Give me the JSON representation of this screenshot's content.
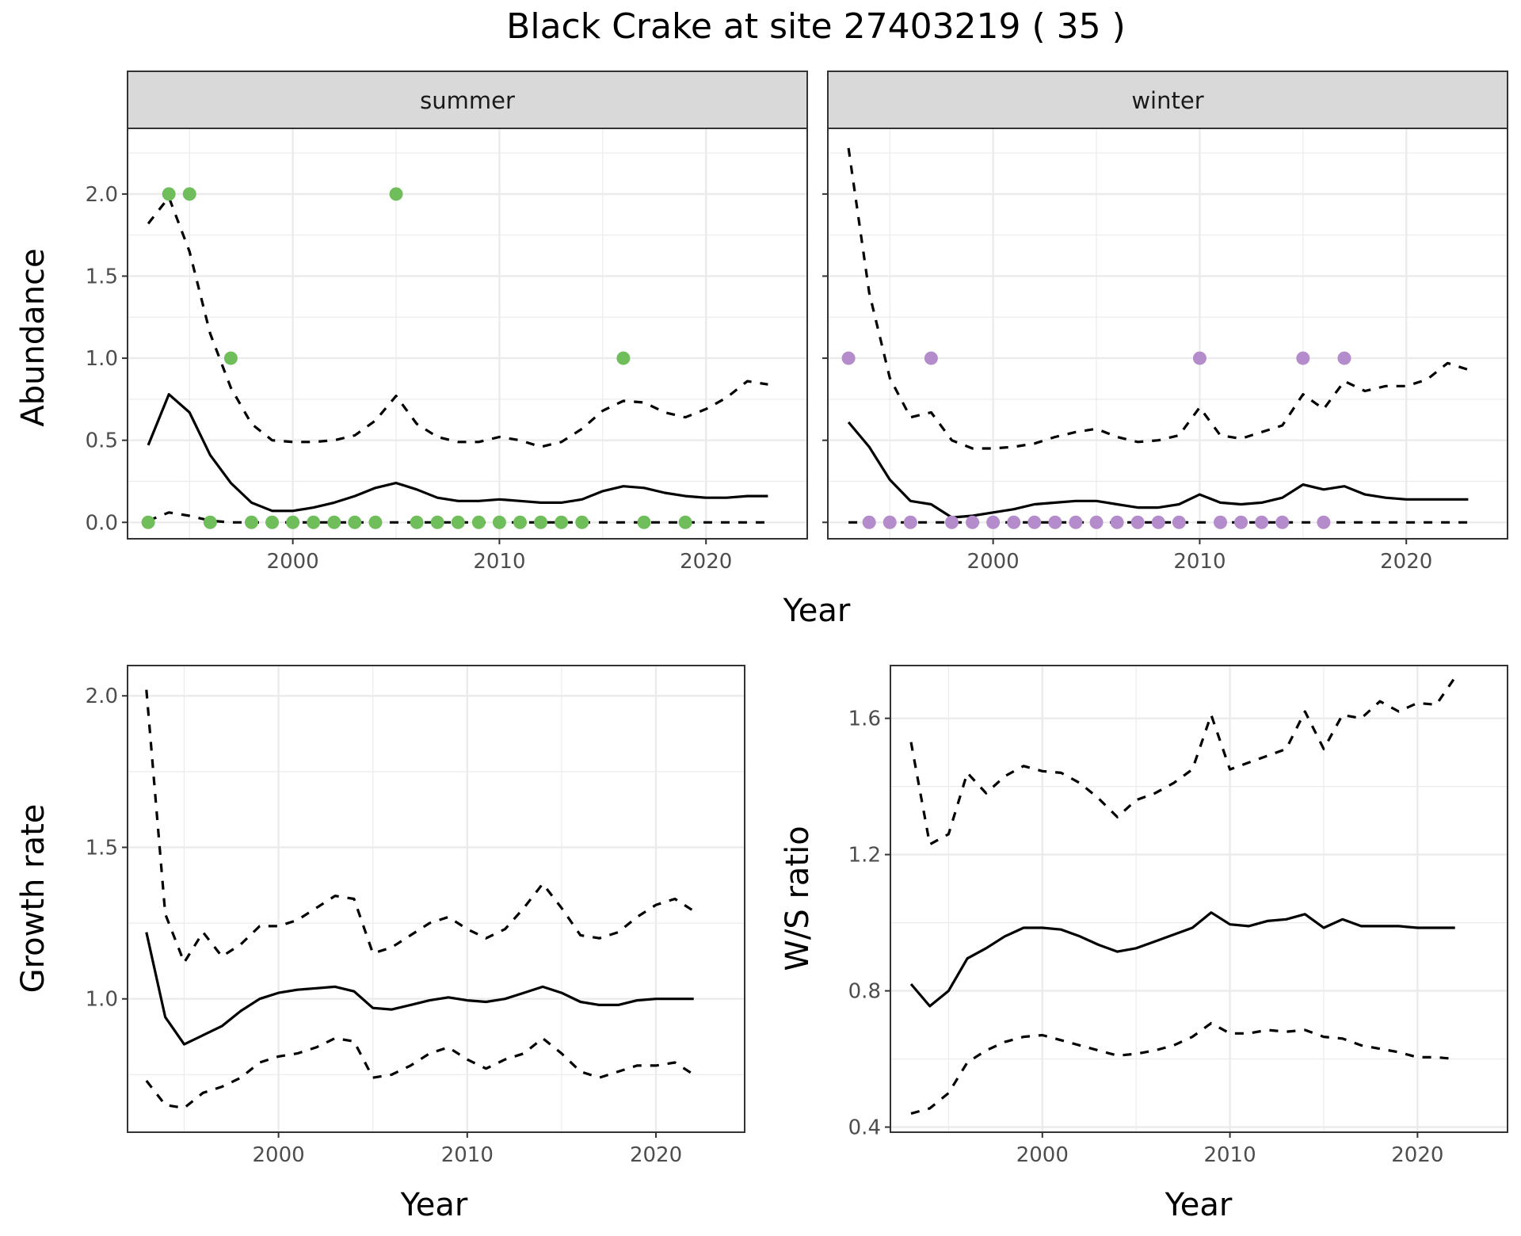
{
  "title": "Black Crake at site 27403219 ( 35 )",
  "colors": {
    "summer_points": "#70BE5B",
    "winter_points": "#B48BCB",
    "line": "#000000",
    "strip_fill": "#D9D9D9",
    "grid": "#EBEBEB",
    "panel_border": "#333333"
  },
  "chart_data": [
    {
      "type": "line",
      "panel": "summer",
      "strip_label": "summer",
      "xlabel": "Year",
      "ylabel": "Abundance",
      "xlim": [
        1992.0,
        2024.9
      ],
      "ylim": [
        -0.1,
        2.4
      ],
      "x_ticks": [
        2000,
        2010,
        2020
      ],
      "y_ticks": [
        0.0,
        0.5,
        1.0,
        1.5,
        2.0
      ],
      "y_tick_labels": [
        "0.0",
        "0.5",
        "1.0",
        "1.5",
        "2.0"
      ],
      "grid": true,
      "point_color": "#70BE5B",
      "points": {
        "x": [
          1993,
          1994,
          1995,
          1996,
          1997,
          1998,
          1999,
          2000,
          2001,
          2002,
          2003,
          2004,
          2005,
          2006,
          2007,
          2008,
          2009,
          2010,
          2011,
          2012,
          2013,
          2014,
          2016,
          2017,
          2019
        ],
        "y": [
          0,
          2,
          2,
          0,
          1,
          0,
          0,
          0,
          0,
          0,
          0,
          0,
          2,
          0,
          0,
          0,
          0,
          0,
          0,
          0,
          0,
          0,
          1,
          0,
          0
        ]
      },
      "series": [
        {
          "style": "solid",
          "x": [
            1993,
            1994,
            1995,
            1996,
            1997,
            1998,
            1999,
            2000,
            2001,
            2002,
            2003,
            2004,
            2005,
            2006,
            2007,
            2008,
            2009,
            2010,
            2011,
            2012,
            2013,
            2014,
            2015,
            2016,
            2017,
            2018,
            2019,
            2020,
            2021,
            2022,
            2023
          ],
          "y": [
            0.47,
            0.78,
            0.67,
            0.41,
            0.24,
            0.12,
            0.07,
            0.07,
            0.09,
            0.12,
            0.16,
            0.21,
            0.24,
            0.2,
            0.15,
            0.13,
            0.13,
            0.14,
            0.13,
            0.12,
            0.12,
            0.14,
            0.19,
            0.22,
            0.21,
            0.18,
            0.16,
            0.15,
            0.15,
            0.16,
            0.16
          ]
        },
        {
          "style": "dashed",
          "x": [
            1993,
            1994,
            1995,
            1996,
            1997,
            1998,
            1999,
            2000,
            2001,
            2002,
            2003,
            2004,
            2005,
            2006,
            2007,
            2008,
            2009,
            2010,
            2011,
            2012,
            2013,
            2014,
            2015,
            2016,
            2017,
            2018,
            2019,
            2020,
            2021,
            2022,
            2023
          ],
          "y": [
            1.82,
            1.98,
            1.65,
            1.15,
            0.82,
            0.6,
            0.5,
            0.49,
            0.49,
            0.5,
            0.53,
            0.62,
            0.77,
            0.6,
            0.52,
            0.49,
            0.49,
            0.52,
            0.5,
            0.46,
            0.49,
            0.57,
            0.68,
            0.74,
            0.73,
            0.67,
            0.64,
            0.69,
            0.76,
            0.86,
            0.84
          ]
        },
        {
          "style": "dashed",
          "x": [
            1993,
            1994,
            1995,
            1996,
            1997,
            1998,
            1999,
            2000,
            2001,
            2002,
            2003,
            2004,
            2005,
            2006,
            2007,
            2008,
            2009,
            2010,
            2011,
            2012,
            2013,
            2014,
            2015,
            2016,
            2017,
            2018,
            2019,
            2020,
            2021,
            2022,
            2023
          ],
          "y": [
            0.01,
            0.06,
            0.04,
            0.01,
            0,
            0,
            0,
            0,
            0,
            0,
            0,
            0,
            0,
            0,
            0,
            0,
            0,
            0,
            0,
            0,
            0,
            0,
            0,
            0,
            0,
            0,
            0,
            0,
            0,
            0,
            0
          ]
        }
      ]
    },
    {
      "type": "line",
      "panel": "winter",
      "strip_label": "winter",
      "xlabel": "Year",
      "ylabel": "Abundance",
      "xlim": [
        1992.0,
        2024.9
      ],
      "ylim": [
        -0.1,
        2.4
      ],
      "x_ticks": [
        2000,
        2010,
        2020
      ],
      "y_ticks": [
        0.0,
        0.5,
        1.0,
        1.5,
        2.0
      ],
      "grid": true,
      "point_color": "#B48BCB",
      "points": {
        "x": [
          1993,
          1994,
          1995,
          1996,
          1997,
          1998,
          1999,
          2000,
          2001,
          2002,
          2003,
          2004,
          2005,
          2006,
          2007,
          2008,
          2009,
          2010,
          2011,
          2012,
          2013,
          2014,
          2015,
          2016,
          2017
        ],
        "y": [
          1,
          0,
          0,
          0,
          1,
          0,
          0,
          0,
          0,
          0,
          0,
          0,
          0,
          0,
          0,
          0,
          0,
          1,
          0,
          0,
          0,
          0,
          1,
          0,
          1
        ]
      },
      "series": [
        {
          "style": "solid",
          "x": [
            1993,
            1994,
            1995,
            1996,
            1997,
            1998,
            1999,
            2000,
            2001,
            2002,
            2003,
            2004,
            2005,
            2006,
            2007,
            2008,
            2009,
            2010,
            2011,
            2012,
            2013,
            2014,
            2015,
            2016,
            2017,
            2018,
            2019,
            2020,
            2021,
            2022,
            2023
          ],
          "y": [
            0.61,
            0.46,
            0.26,
            0.13,
            0.11,
            0.03,
            0.04,
            0.06,
            0.08,
            0.11,
            0.12,
            0.13,
            0.13,
            0.11,
            0.09,
            0.09,
            0.11,
            0.17,
            0.12,
            0.11,
            0.12,
            0.15,
            0.23,
            0.2,
            0.22,
            0.17,
            0.15,
            0.14,
            0.14,
            0.14,
            0.14
          ]
        },
        {
          "style": "dashed",
          "x": [
            1993,
            1994,
            1995,
            1996,
            1997,
            1998,
            1999,
            2000,
            2001,
            2002,
            2003,
            2004,
            2005,
            2006,
            2007,
            2008,
            2009,
            2010,
            2011,
            2012,
            2013,
            2014,
            2015,
            2016,
            2017,
            2018,
            2019,
            2020,
            2021,
            2022,
            2023
          ],
          "y": [
            2.28,
            1.4,
            0.88,
            0.64,
            0.67,
            0.5,
            0.45,
            0.45,
            0.46,
            0.48,
            0.52,
            0.55,
            0.57,
            0.52,
            0.49,
            0.5,
            0.53,
            0.7,
            0.53,
            0.51,
            0.55,
            0.59,
            0.78,
            0.69,
            0.86,
            0.8,
            0.83,
            0.83,
            0.87,
            0.97,
            0.93
          ]
        },
        {
          "style": "dashed",
          "x": [
            1993,
            1994,
            1995,
            1996,
            1997,
            1998,
            1999,
            2000,
            2001,
            2002,
            2003,
            2004,
            2005,
            2006,
            2007,
            2008,
            2009,
            2010,
            2011,
            2012,
            2013,
            2014,
            2015,
            2016,
            2017,
            2018,
            2019,
            2020,
            2021,
            2022,
            2023
          ],
          "y": [
            0,
            0,
            0,
            0,
            0,
            0,
            0,
            0,
            0,
            0,
            0,
            0,
            0,
            0,
            0,
            0,
            0,
            0,
            0,
            0,
            0,
            0,
            0,
            0,
            0,
            0,
            0,
            0,
            0,
            0,
            0
          ]
        }
      ]
    },
    {
      "type": "line",
      "panel": "growth",
      "xlabel": "Year",
      "ylabel": "Growth rate",
      "xlim": [
        1992.0,
        2024.7
      ],
      "ylim": [
        0.56,
        2.1
      ],
      "x_ticks": [
        2000,
        2010,
        2020
      ],
      "y_ticks": [
        1.0,
        1.5,
        2.0
      ],
      "y_tick_labels": [
        "1.0",
        "1.5",
        "2.0"
      ],
      "grid": true,
      "series": [
        {
          "style": "solid",
          "x": [
            1993,
            1994,
            1995,
            1996,
            1997,
            1998,
            1999,
            2000,
            2001,
            2002,
            2003,
            2004,
            2005,
            2006,
            2007,
            2008,
            2009,
            2010,
            2011,
            2012,
            2013,
            2014,
            2015,
            2016,
            2017,
            2018,
            2019,
            2020,
            2021,
            2022
          ],
          "y": [
            1.22,
            0.94,
            0.85,
            0.88,
            0.91,
            0.96,
            1.0,
            1.02,
            1.03,
            1.035,
            1.04,
            1.025,
            0.97,
            0.965,
            0.98,
            0.995,
            1.005,
            0.995,
            0.99,
            1.0,
            1.02,
            1.04,
            1.02,
            0.99,
            0.98,
            0.98,
            0.995,
            1.0,
            1.0,
            1.0
          ]
        },
        {
          "style": "dashed",
          "x": [
            1993,
            1994,
            1995,
            1996,
            1997,
            1998,
            1999,
            2000,
            2001,
            2002,
            2003,
            2004,
            2005,
            2006,
            2007,
            2008,
            2009,
            2010,
            2011,
            2012,
            2013,
            2014,
            2015,
            2016,
            2017,
            2018,
            2019,
            2020,
            2021,
            2022
          ],
          "y": [
            2.02,
            1.28,
            1.12,
            1.22,
            1.14,
            1.18,
            1.24,
            1.24,
            1.26,
            1.3,
            1.34,
            1.33,
            1.15,
            1.17,
            1.21,
            1.25,
            1.27,
            1.23,
            1.2,
            1.23,
            1.3,
            1.38,
            1.3,
            1.21,
            1.2,
            1.22,
            1.27,
            1.31,
            1.33,
            1.29
          ]
        },
        {
          "style": "dashed",
          "x": [
            1993,
            1994,
            1995,
            1996,
            1997,
            1998,
            1999,
            2000,
            2001,
            2002,
            2003,
            2004,
            2005,
            2006,
            2007,
            2008,
            2009,
            2010,
            2011,
            2012,
            2013,
            2014,
            2015,
            2016,
            2017,
            2018,
            2019,
            2020,
            2021,
            2022
          ],
          "y": [
            0.73,
            0.65,
            0.64,
            0.69,
            0.71,
            0.74,
            0.79,
            0.81,
            0.82,
            0.84,
            0.87,
            0.86,
            0.74,
            0.75,
            0.78,
            0.82,
            0.84,
            0.8,
            0.77,
            0.8,
            0.82,
            0.87,
            0.82,
            0.76,
            0.74,
            0.76,
            0.78,
            0.78,
            0.79,
            0.75
          ]
        }
      ]
    },
    {
      "type": "line",
      "panel": "ws_ratio",
      "xlabel": "Year",
      "ylabel": "W/S ratio",
      "xlim": [
        1991.9,
        2024.8
      ],
      "ylim": [
        0.385,
        1.755
      ],
      "x_ticks": [
        2000,
        2010,
        2020
      ],
      "y_ticks": [
        0.4,
        0.8,
        1.2,
        1.6
      ],
      "y_tick_labels": [
        "0.4",
        "0.8",
        "1.2",
        "1.6"
      ],
      "grid": true,
      "series": [
        {
          "style": "solid",
          "x": [
            1993,
            1994,
            1995,
            1996,
            1997,
            1998,
            1999,
            2000,
            2001,
            2002,
            2003,
            2004,
            2005,
            2006,
            2007,
            2008,
            2009,
            2010,
            2011,
            2012,
            2013,
            2014,
            2015,
            2016,
            2017,
            2018,
            2019,
            2020,
            2021,
            2022
          ],
          "y": [
            0.82,
            0.755,
            0.8,
            0.895,
            0.925,
            0.96,
            0.985,
            0.985,
            0.98,
            0.96,
            0.935,
            0.915,
            0.925,
            0.945,
            0.965,
            0.985,
            1.03,
            0.995,
            0.99,
            1.005,
            1.01,
            1.025,
            0.985,
            1.01,
            0.99,
            0.99,
            0.99,
            0.985,
            0.985,
            0.985
          ]
        },
        {
          "style": "dashed",
          "x": [
            1993,
            1994,
            1995,
            1996,
            1997,
            1998,
            1999,
            2000,
            2001,
            2002,
            2003,
            2004,
            2005,
            2006,
            2007,
            2008,
            2009,
            2010,
            2011,
            2012,
            2013,
            2014,
            2015,
            2016,
            2017,
            2018,
            2019,
            2020,
            2021,
            2022
          ],
          "y": [
            1.53,
            1.23,
            1.26,
            1.44,
            1.38,
            1.43,
            1.46,
            1.445,
            1.44,
            1.41,
            1.365,
            1.31,
            1.36,
            1.38,
            1.41,
            1.45,
            1.61,
            1.45,
            1.47,
            1.49,
            1.51,
            1.62,
            1.51,
            1.61,
            1.6,
            1.65,
            1.62,
            1.645,
            1.64,
            1.72
          ]
        },
        {
          "style": "dashed",
          "x": [
            1993,
            1994,
            1995,
            1996,
            1997,
            1998,
            1999,
            2000,
            2001,
            2002,
            2003,
            2004,
            2005,
            2006,
            2007,
            2008,
            2009,
            2010,
            2011,
            2012,
            2013,
            2014,
            2015,
            2016,
            2017,
            2018,
            2019,
            2020,
            2021,
            2022
          ],
          "y": [
            0.44,
            0.455,
            0.5,
            0.59,
            0.625,
            0.65,
            0.665,
            0.67,
            0.655,
            0.64,
            0.625,
            0.61,
            0.615,
            0.625,
            0.64,
            0.665,
            0.705,
            0.675,
            0.675,
            0.685,
            0.68,
            0.685,
            0.665,
            0.66,
            0.64,
            0.63,
            0.62,
            0.605,
            0.605,
            0.6
          ]
        }
      ]
    }
  ]
}
